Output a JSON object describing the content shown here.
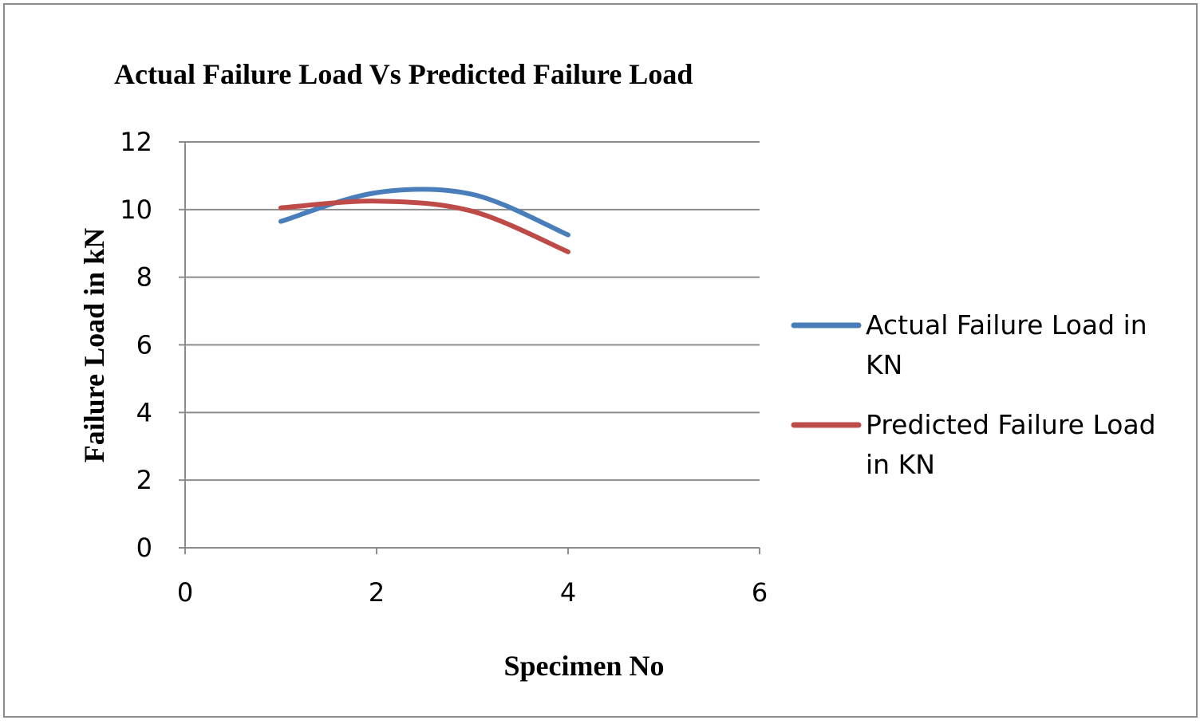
{
  "chart_data": {
    "type": "line",
    "title": "Actual Failure Load Vs Predicted Failure Load",
    "xlabel": "Specimen No",
    "ylabel": "Failure Load in kN",
    "xlim": [
      0,
      6
    ],
    "ylim": [
      0,
      12
    ],
    "x_ticks": [
      "0",
      "2",
      "4",
      "6"
    ],
    "y_ticks": [
      "0",
      "2",
      "4",
      "6",
      "8",
      "10",
      "12"
    ],
    "grid": "horizontal",
    "smooth": true,
    "legend_position": "right",
    "series": [
      {
        "name": "Actual Failure Load in KN",
        "legend_lines": [
          "Actual Failure Load in",
          "KN"
        ],
        "color": "#4a7ebb",
        "x": [
          1,
          2,
          3,
          4
        ],
        "values": [
          9.65,
          10.5,
          10.45,
          9.25
        ]
      },
      {
        "name": "Predicted Failure Load in KN",
        "legend_lines": [
          "Predicted Failure Load",
          "in KN"
        ],
        "color": "#be4b48",
        "x": [
          1,
          2,
          3,
          4
        ],
        "values": [
          10.05,
          10.25,
          9.95,
          8.75
        ]
      }
    ]
  }
}
